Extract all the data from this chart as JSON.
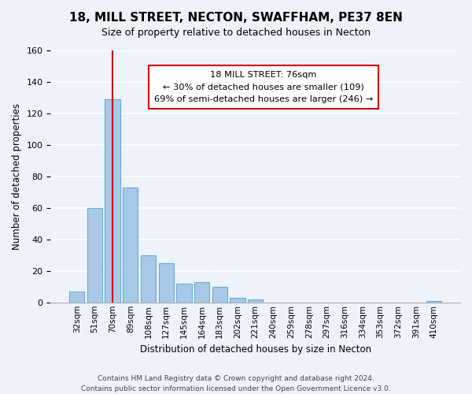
{
  "title": "18, MILL STREET, NECTON, SWAFFHAM, PE37 8EN",
  "subtitle": "Size of property relative to detached houses in Necton",
  "xlabel": "Distribution of detached houses by size in Necton",
  "ylabel": "Number of detached properties",
  "bar_color": "#a8c8e8",
  "bar_edge_color": "#6aaad4",
  "background_color": "#eef2fb",
  "categories": [
    "32sqm",
    "51sqm",
    "70sqm",
    "89sqm",
    "108sqm",
    "127sqm",
    "145sqm",
    "164sqm",
    "183sqm",
    "202sqm",
    "221sqm",
    "240sqm",
    "259sqm",
    "278sqm",
    "297sqm",
    "316sqm",
    "334sqm",
    "353sqm",
    "372sqm",
    "391sqm",
    "410sqm"
  ],
  "values": [
    7,
    60,
    129,
    73,
    30,
    25,
    12,
    13,
    10,
    3,
    2,
    0,
    0,
    0,
    0,
    0,
    0,
    0,
    0,
    0,
    1
  ],
  "ylim": [
    0,
    160
  ],
  "yticks": [
    0,
    20,
    40,
    60,
    80,
    100,
    120,
    140,
    160
  ],
  "vline_color": "#cc0000",
  "annotation_title": "18 MILL STREET: 76sqm",
  "annotation_line1": "← 30% of detached houses are smaller (109)",
  "annotation_line2": "69% of semi-detached houses are larger (246) →",
  "annotation_box_color": "#ffffff",
  "annotation_box_edge": "#cc0000",
  "footer1": "Contains HM Land Registry data © Crown copyright and database right 2024.",
  "footer2": "Contains public sector information licensed under the Open Government Licence v3.0."
}
